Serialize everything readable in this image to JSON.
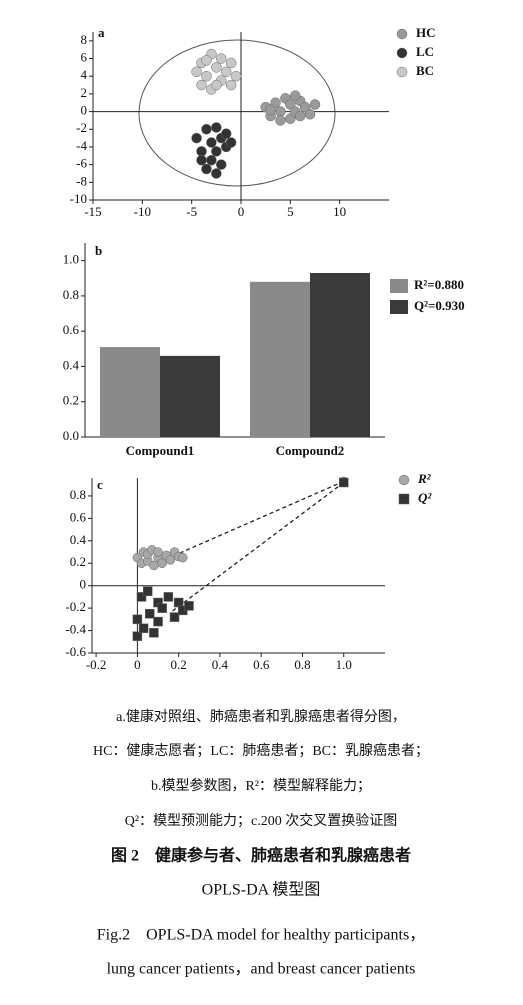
{
  "chart_data": [
    {
      "type": "scatter",
      "panel": "a",
      "xlim": [
        -15,
        15
      ],
      "ylim": [
        -10,
        9
      ],
      "xticks": [
        -15,
        -10,
        -5,
        0,
        5,
        10
      ],
      "yticks": [
        -10,
        -8,
        -6,
        -4,
        -2,
        0,
        2,
        4,
        6,
        8
      ],
      "series": [
        {
          "name": "HC",
          "color": "#9a9a9a",
          "marker": "circle",
          "x": [
            2.5,
            3,
            3.5,
            4,
            4.5,
            5,
            5,
            5.5,
            6,
            6,
            6.5,
            7,
            7.5,
            4,
            3,
            5.5
          ],
          "values": [
            0.5,
            -0.5,
            1,
            0,
            1.5,
            -0.8,
            0.8,
            0,
            1.2,
            -0.5,
            0.5,
            -0.3,
            0.8,
            -1,
            0.2,
            1.8
          ]
        },
        {
          "name": "LC",
          "color": "#333333",
          "marker": "circle",
          "x": [
            -4.5,
            -4,
            -3.5,
            -3,
            -3,
            -2.5,
            -2.5,
            -2,
            -2,
            -1.5,
            -1.5,
            -3.5,
            -1,
            -4,
            -2.5
          ],
          "values": [
            -3,
            -4.5,
            -2,
            -3.5,
            -5.5,
            -1.8,
            -4.5,
            -3,
            -6,
            -4,
            -2.5,
            -6.5,
            -3.5,
            -5.5,
            -7
          ]
        },
        {
          "name": "BC",
          "color": "#c8c8c8",
          "marker": "circle",
          "x": [
            -4.5,
            -4,
            -4,
            -3.5,
            -3,
            -3,
            -2.5,
            -2,
            -2,
            -1.5,
            -1,
            -3.5,
            -1,
            -2.5,
            -0.5
          ],
          "values": [
            4.5,
            3,
            5.5,
            4,
            6.5,
            2.5,
            5,
            3.5,
            6,
            4.5,
            3,
            5.8,
            5.5,
            3,
            4
          ]
        }
      ]
    },
    {
      "type": "bar",
      "panel": "b",
      "ylim": [
        0,
        1.1
      ],
      "yticks": [
        {
          "value": 0,
          "label": "0.0"
        },
        0.2,
        0.4,
        0.6,
        0.8,
        {
          "value": 1,
          "label": "1.0"
        }
      ],
      "categories": [
        "Compound1",
        "Compound2"
      ],
      "series": [
        {
          "name": "R²=0.880",
          "color": "#8a8a8a",
          "values": [
            0.51,
            0.88
          ]
        },
        {
          "name": "Q²=0.930",
          "color": "#3a3a3a",
          "values": [
            0.46,
            0.93
          ]
        }
      ]
    },
    {
      "type": "scatter",
      "panel": "c",
      "fit_lines": true,
      "xlim": [
        -0.22,
        1.2
      ],
      "ylim": [
        -0.6,
        0.96
      ],
      "xticks": [
        -0.2,
        0,
        0.2,
        0.4,
        0.6,
        0.8,
        {
          "value": 1,
          "label": "1.0"
        }
      ],
      "yticks": [
        -0.6,
        -0.4,
        -0.2,
        0,
        0.2,
        0.4,
        0.6,
        0.8
      ],
      "series": [
        {
          "name": "R²",
          "color": "#a8a8a8",
          "marker": "circle",
          "x": [
            1,
            0,
            0.02,
            0.03,
            0.05,
            0.05,
            0.07,
            0.08,
            0.1,
            0.1,
            0.12,
            0.14,
            0.16,
            0.18,
            0.2,
            0.22
          ],
          "values": [
            0.93,
            0.25,
            0.2,
            0.3,
            0.22,
            0.28,
            0.32,
            0.18,
            0.25,
            0.3,
            0.2,
            0.27,
            0.23,
            0.3,
            0.26,
            0.25
          ]
        },
        {
          "name": "Q²",
          "color": "#333333",
          "marker": "square",
          "x": [
            1,
            0,
            0,
            0.02,
            0.03,
            0.05,
            0.06,
            0.08,
            0.1,
            0.1,
            0.12,
            0.15,
            0.18,
            0.2,
            0.22,
            0.25
          ],
          "values": [
            0.92,
            -0.45,
            -0.3,
            -0.1,
            -0.38,
            -0.05,
            -0.25,
            -0.42,
            -0.15,
            -0.32,
            -0.2,
            -0.1,
            -0.28,
            -0.15,
            -0.22,
            -0.18
          ]
        }
      ]
    }
  ],
  "caption": {
    "lines": [
      "a.健康对照组、肺癌患者和乳腺癌患者得分图，",
      "HC：健康志愿者；LC：肺癌患者；BC：乳腺癌患者；",
      "b.模型参数图，R²：模型解释能力；",
      "Q²：模型预测能力；c.200 次交叉置换验证图",
      "图 2　健康参与者、肺癌患者和乳腺癌患者",
      "OPLS-DA 模型图",
      "Fig.2　OPLS-DA model for healthy participants，",
      "lung cancer patients，and breast cancer patients"
    ]
  }
}
